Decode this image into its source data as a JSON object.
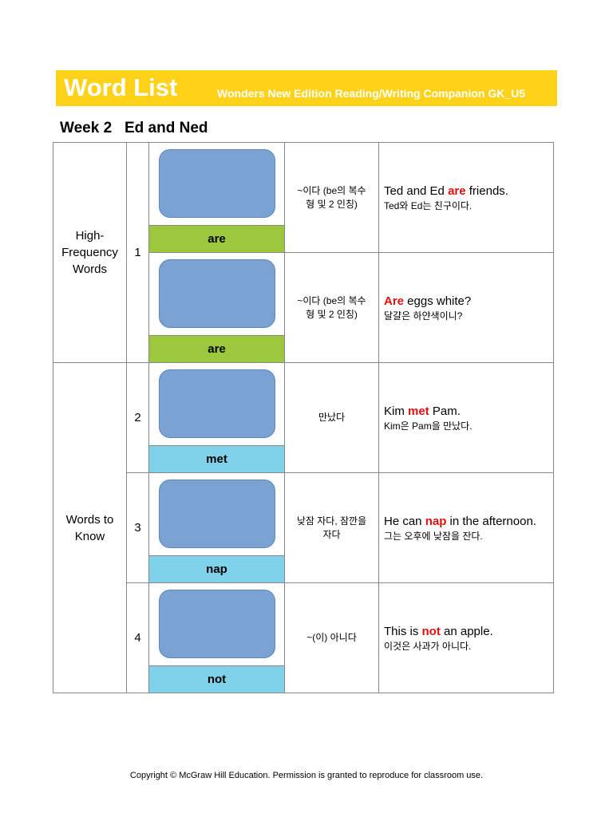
{
  "header": {
    "title": "Word List",
    "subtitle": "Wonders New Edition Reading/Writing Companion GK_U5"
  },
  "week": {
    "label": "Week 2",
    "title": "Ed and Ned"
  },
  "groups": [
    {
      "label": "High-Frequency Words",
      "color": "#9bc83d",
      "items": [
        {
          "number": "1",
          "words": [
            {
              "word": "are",
              "meaning": "~이다 (be의 복수형 및 2 인칭)",
              "sentence": {
                "before": "Ted and Ed ",
                "word": "are",
                "after": " friends."
              },
              "translation": "Ted와 Ed는 친구이다."
            },
            {
              "word": "are",
              "meaning": "~이다 (be의 복수형 및 2 인칭)",
              "sentence": {
                "word": "Are",
                "after": " eggs white?"
              },
              "translation": "달걀은 하얀색이니?"
            }
          ]
        }
      ]
    },
    {
      "label": "Words to Know",
      "color": "#7fd2e9",
      "items": [
        {
          "number": "2",
          "words": [
            {
              "word": "met",
              "meaning": "만났다",
              "sentence": {
                "before": "Kim ",
                "word": "met",
                "after": " Pam."
              },
              "translation": "Kim은 Pam을 만났다."
            }
          ]
        },
        {
          "number": "3",
          "words": [
            {
              "word": "nap",
              "meaning": "낮잠 자다, 잠깐을 자다",
              "sentence": {
                "before": "He can ",
                "word": "nap",
                "after": " in the afternoon."
              },
              "translation": "그는 오후에 낮잠을 잔다."
            }
          ]
        },
        {
          "number": "4",
          "words": [
            {
              "word": "not",
              "meaning": "~(이) 아니다",
              "sentence": {
                "before": "This is ",
                "word": "not",
                "after": " an apple."
              },
              "translation": "이것은 사과가 아니다."
            }
          ]
        }
      ]
    }
  ],
  "footer": "Copyright © McGraw Hill Education. Permission is granted to reproduce for classroom use."
}
